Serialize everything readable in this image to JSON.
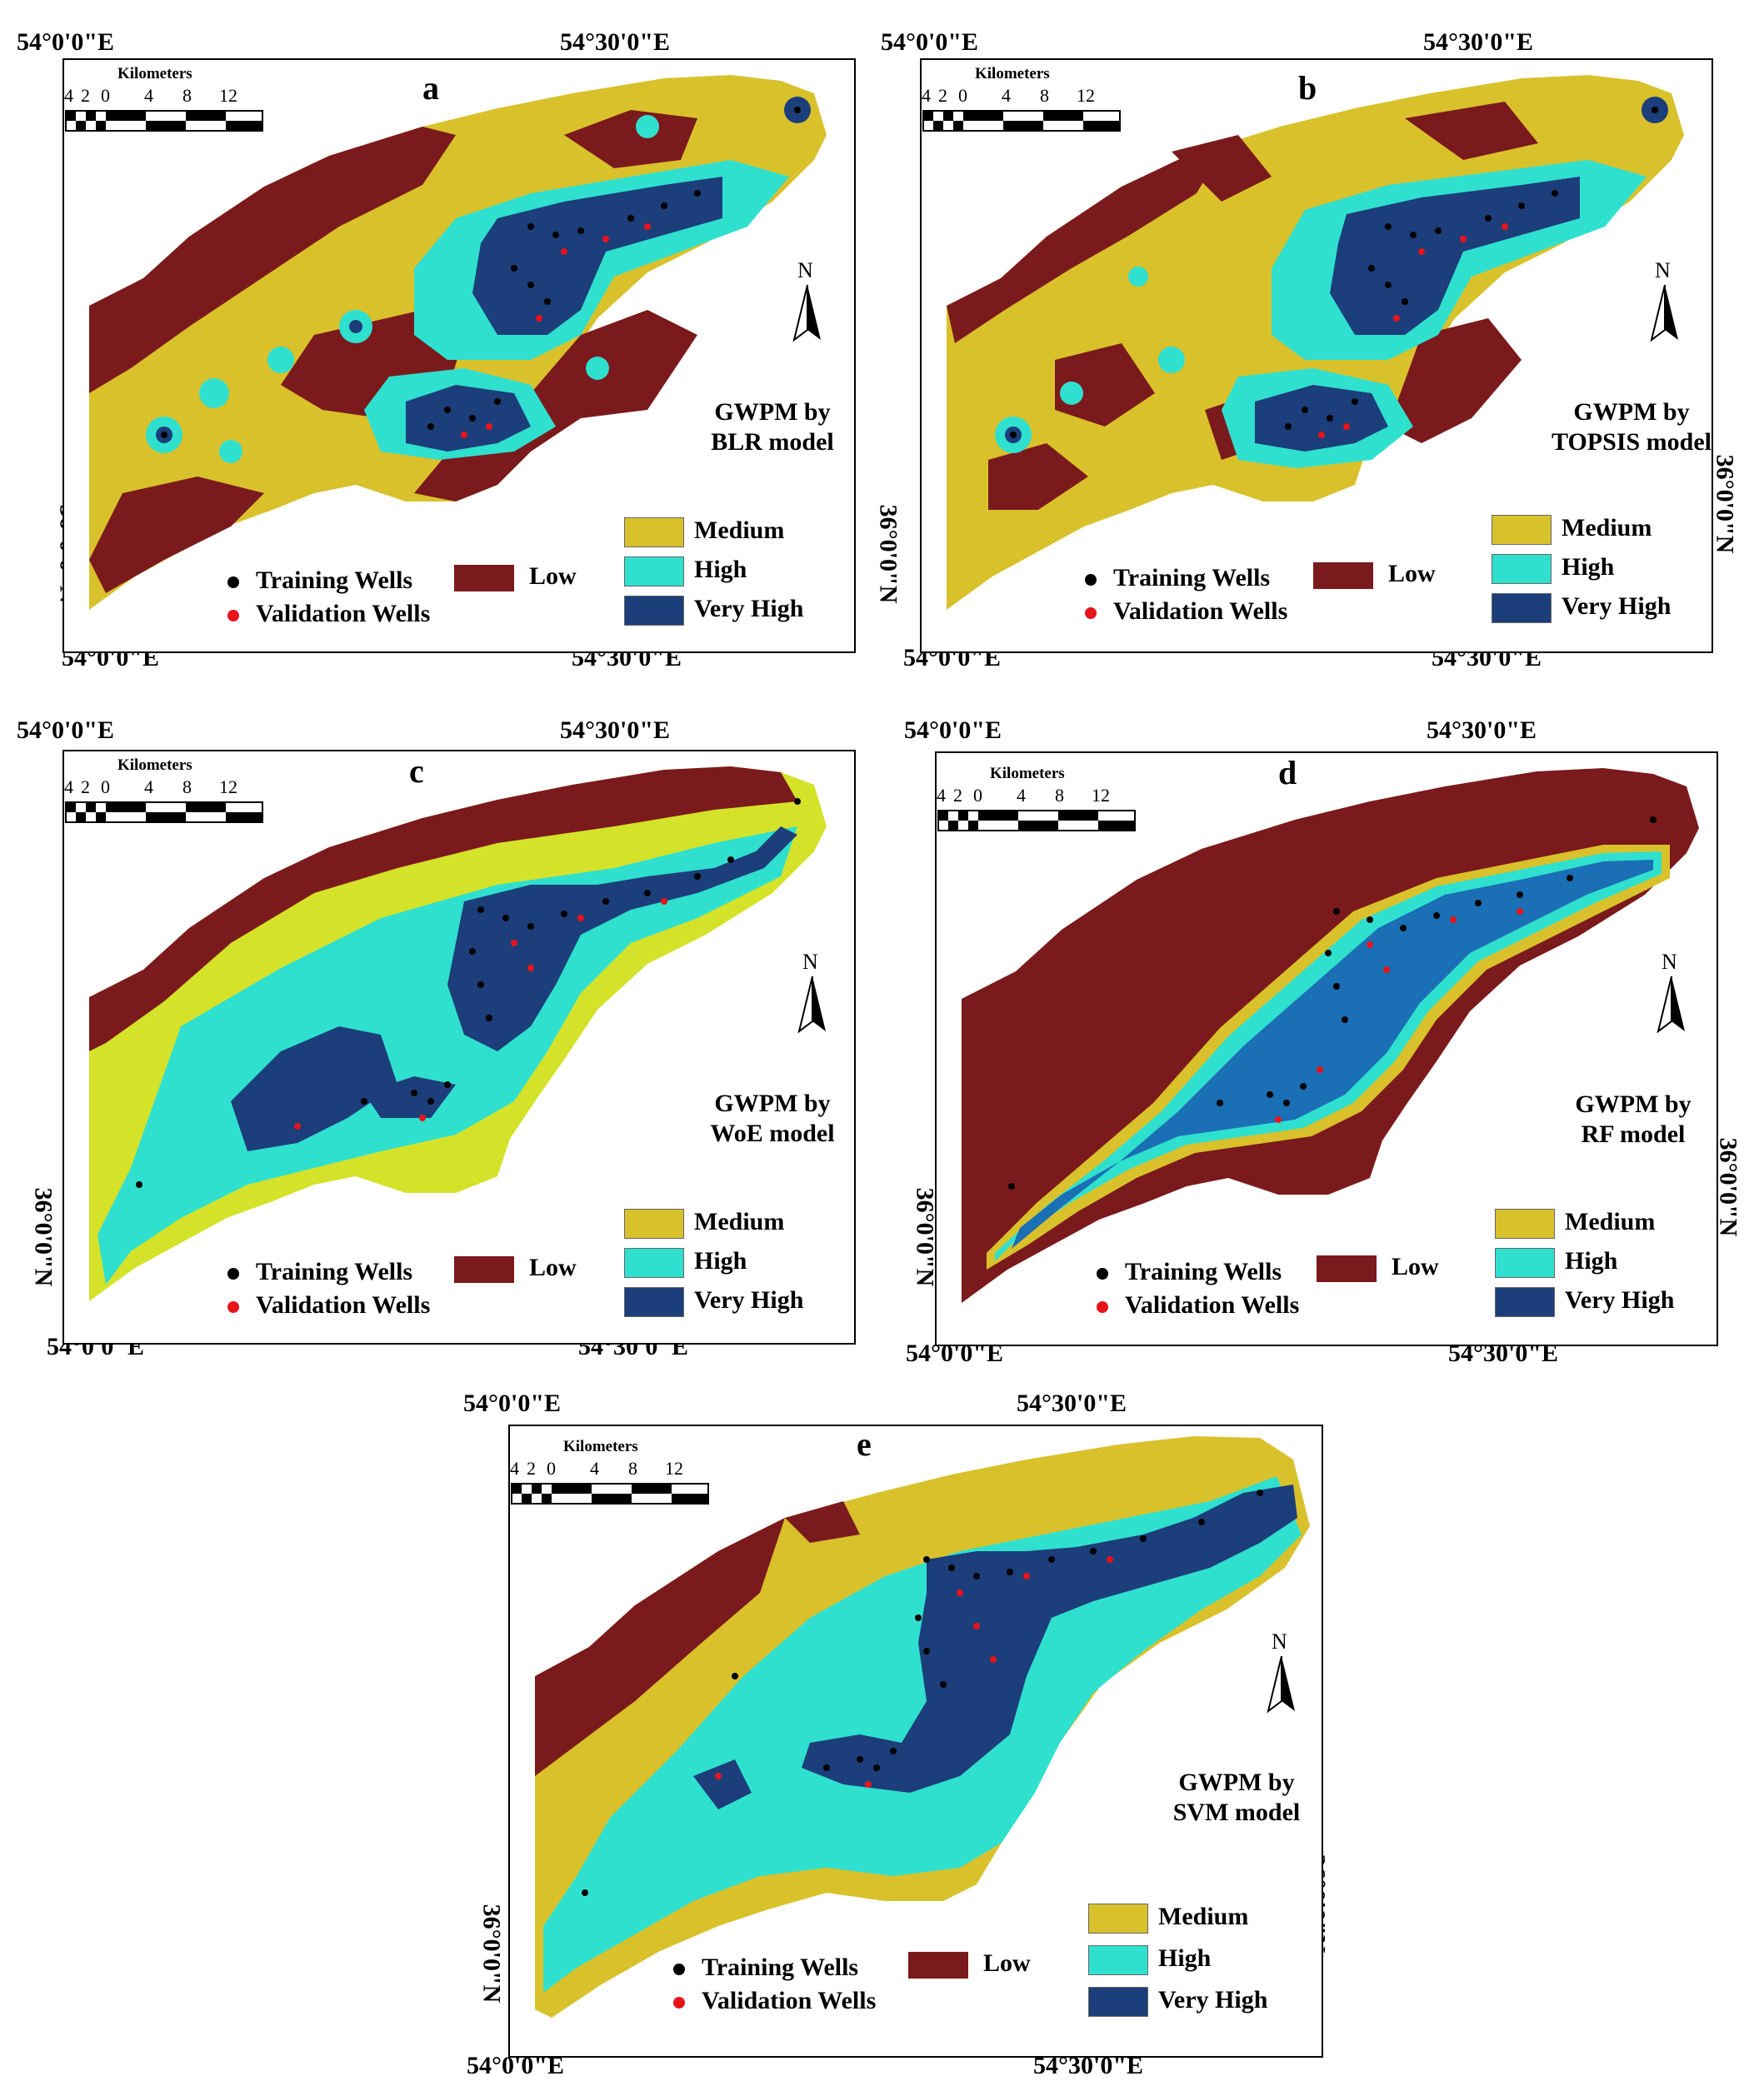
{
  "colors": {
    "low": "#7b1a1c",
    "medium": "#d9c12c",
    "high": "#2fe0cf",
    "very_high": "#1c3e7a",
    "rf_very_high": "#1a6fb5",
    "training_dot": "#000000",
    "validation_dot": "#e8141b"
  },
  "coordinates": {
    "lon_west": "54°0'0\"E",
    "lon_mid": "54°30'0\"E",
    "lat": "36°0'0\"N"
  },
  "scale_bar": {
    "title": "Kilometers",
    "ticks": [
      "4",
      "2",
      "0",
      "4",
      "8",
      "12"
    ]
  },
  "north_label": "N",
  "legend": {
    "training": "Training Wells",
    "validation": "Validation Wells",
    "low": "Low",
    "medium": "Medium",
    "high": "High",
    "very_high": "Very High"
  },
  "panels": [
    {
      "letter": "a",
      "caption_line1": "GWPM by",
      "caption_line2": "BLR  model"
    },
    {
      "letter": "b",
      "caption_line1": "GWPM by",
      "caption_line2": "TOPSIS  model"
    },
    {
      "letter": "c",
      "caption_line1": "GWPM by",
      "caption_line2": "WoE model"
    },
    {
      "letter": "d",
      "caption_line1": "GWPM by",
      "caption_line2": "RF  model"
    },
    {
      "letter": "e",
      "caption_line1": "GWPM by",
      "caption_line2": "SVM  model"
    }
  ]
}
